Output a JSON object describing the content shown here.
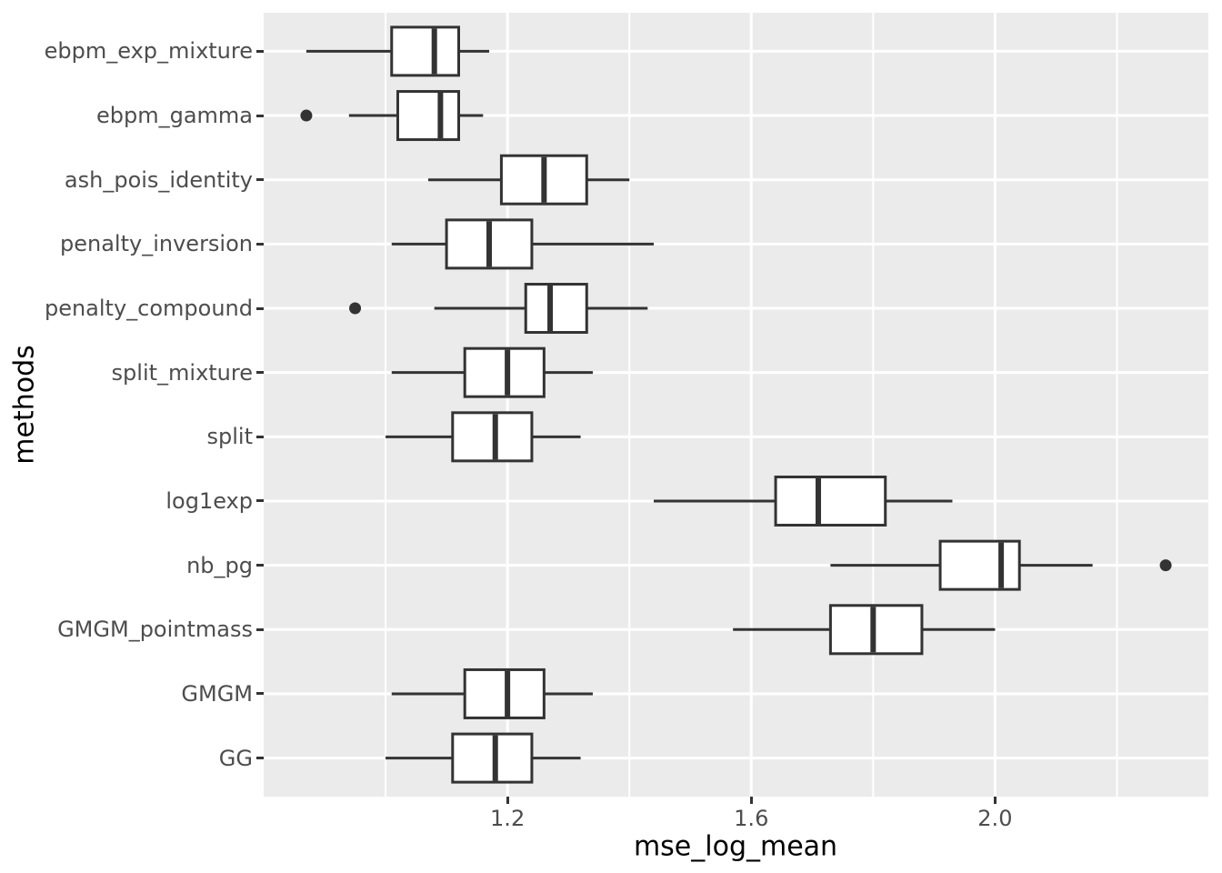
{
  "chart_data": {
    "type": "boxplot",
    "orientation": "horizontal",
    "xlabel": "mse_log_mean",
    "ylabel": "methods",
    "xlim": [
      0.8,
      2.35
    ],
    "x_ticks": [
      1.2,
      1.6,
      2.0
    ],
    "x_tick_labels": [
      "1.2",
      "1.6",
      "2.0"
    ],
    "x_minor_gridlines": [
      1.0,
      1.4,
      1.8,
      2.2
    ],
    "grid": "on",
    "legend": "none",
    "categories": [
      "ebpm_exp_mixture",
      "ebpm_gamma",
      "ash_pois_identity",
      "penalty_inversion",
      "penalty_compound",
      "split_mixture",
      "split",
      "log1exp",
      "nb_pg",
      "GMGM_pointmass",
      "GMGM",
      "GG"
    ],
    "series": [
      {
        "name": "ebpm_exp_mixture",
        "min": 0.87,
        "q1": 1.01,
        "median": 1.08,
        "q3": 1.12,
        "max": 1.17,
        "outliers": []
      },
      {
        "name": "ebpm_gamma",
        "min": 0.94,
        "q1": 1.02,
        "median": 1.09,
        "q3": 1.12,
        "max": 1.16,
        "outliers": [
          0.87
        ]
      },
      {
        "name": "ash_pois_identity",
        "min": 1.07,
        "q1": 1.19,
        "median": 1.26,
        "q3": 1.33,
        "max": 1.4,
        "outliers": []
      },
      {
        "name": "penalty_inversion",
        "min": 1.01,
        "q1": 1.1,
        "median": 1.17,
        "q3": 1.24,
        "max": 1.44,
        "outliers": []
      },
      {
        "name": "penalty_compound",
        "min": 1.08,
        "q1": 1.23,
        "median": 1.27,
        "q3": 1.33,
        "max": 1.43,
        "outliers": [
          0.95
        ]
      },
      {
        "name": "split_mixture",
        "min": 1.01,
        "q1": 1.13,
        "median": 1.2,
        "q3": 1.26,
        "max": 1.34,
        "outliers": []
      },
      {
        "name": "split",
        "min": 1.0,
        "q1": 1.11,
        "median": 1.18,
        "q3": 1.24,
        "max": 1.32,
        "outliers": []
      },
      {
        "name": "log1exp",
        "min": 1.44,
        "q1": 1.64,
        "median": 1.71,
        "q3": 1.82,
        "max": 1.93,
        "outliers": []
      },
      {
        "name": "nb_pg",
        "min": 1.73,
        "q1": 1.91,
        "median": 2.01,
        "q3": 2.04,
        "max": 2.16,
        "outliers": [
          2.28
        ]
      },
      {
        "name": "GMGM_pointmass",
        "min": 1.57,
        "q1": 1.73,
        "median": 1.8,
        "q3": 1.88,
        "max": 2.0,
        "outliers": []
      },
      {
        "name": "GMGM",
        "min": 1.01,
        "q1": 1.13,
        "median": 1.2,
        "q3": 1.26,
        "max": 1.34,
        "outliers": []
      },
      {
        "name": "GG",
        "min": 1.0,
        "q1": 1.11,
        "median": 1.18,
        "q3": 1.24,
        "max": 1.32,
        "outliers": []
      }
    ]
  },
  "style": {
    "panel_bg": "#EBEBEB",
    "grid_color": "#FFFFFF",
    "box_stroke": "#333333",
    "box_fill": "#FFFFFF",
    "axis_text_color": "#4D4D4D",
    "axis_title_color": "#000000",
    "tick_mark_color": "#333333"
  }
}
